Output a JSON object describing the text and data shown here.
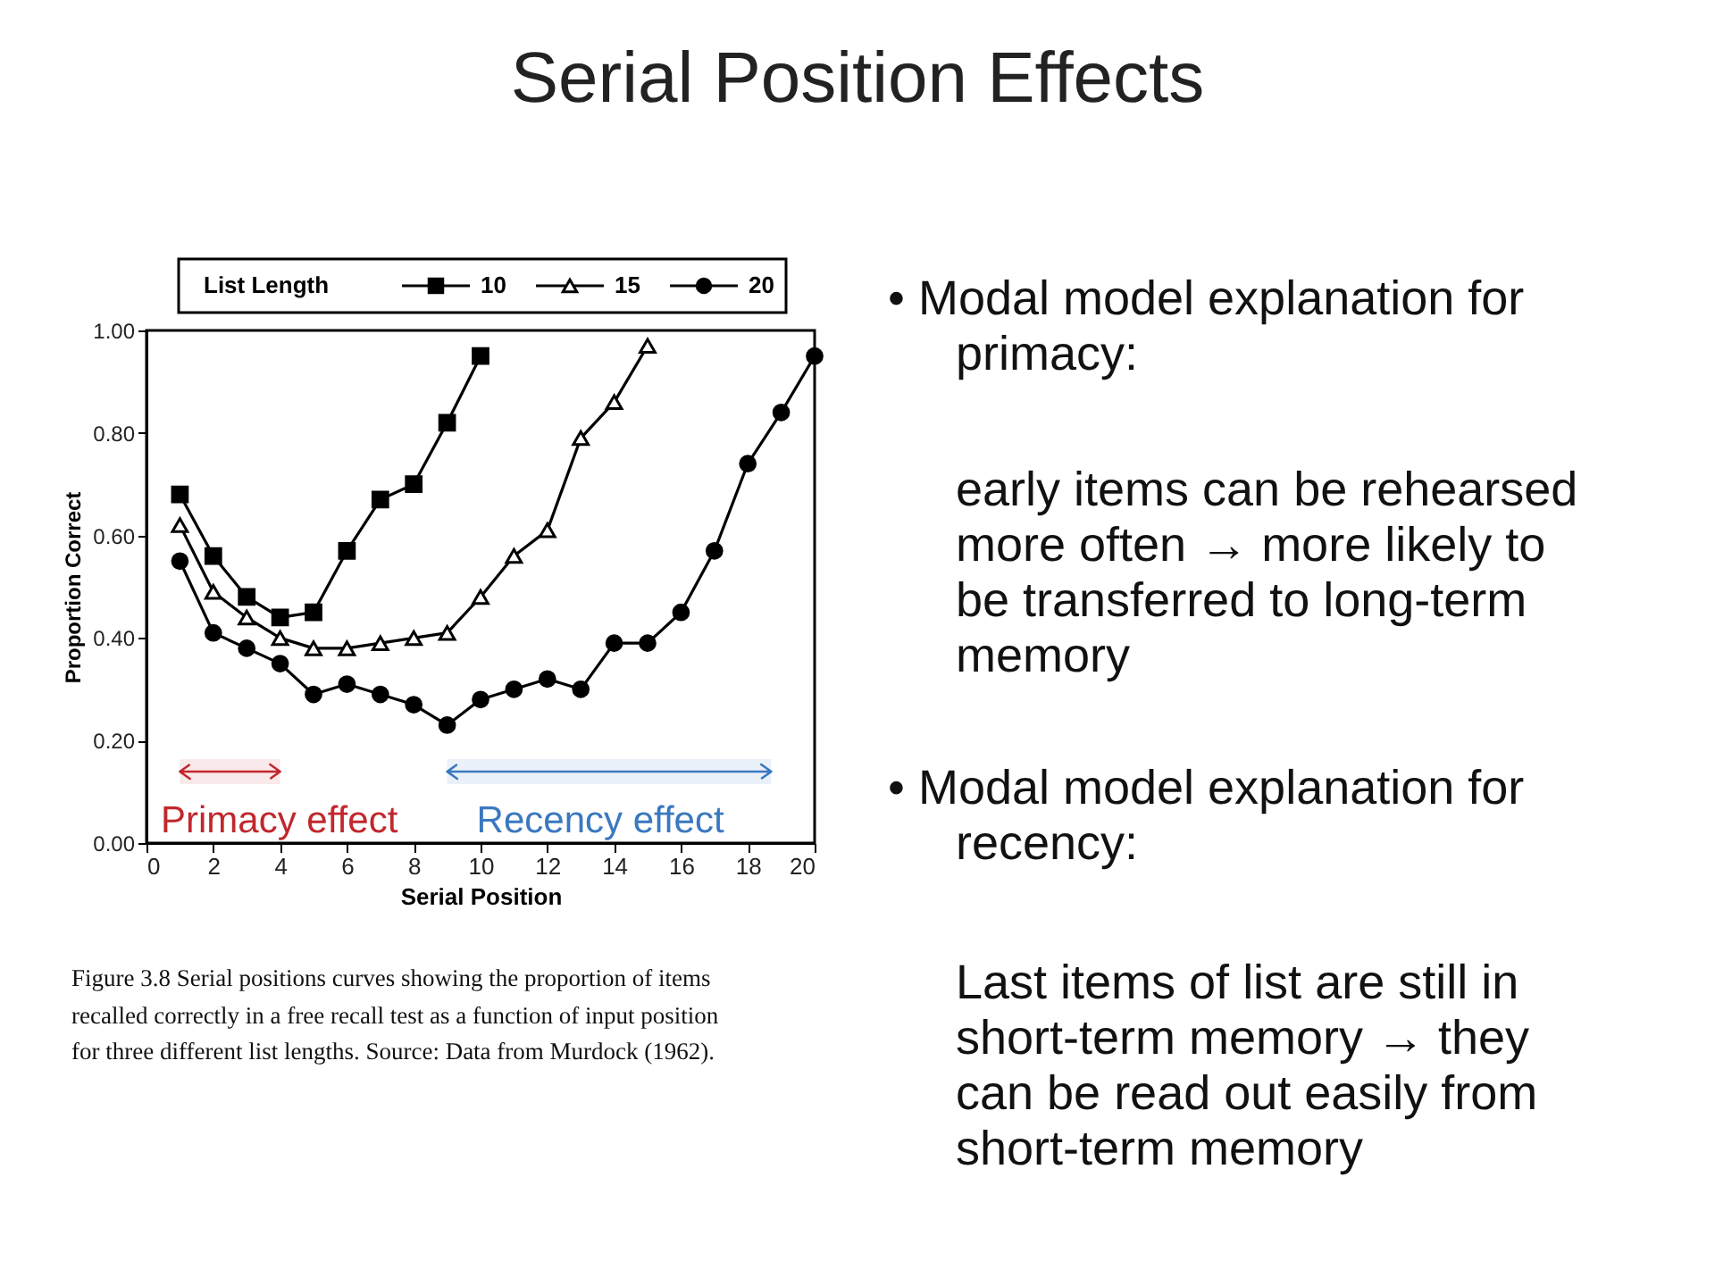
{
  "chart_data": {
    "type": "line",
    "title": "Serial Position Effects",
    "xlabel": "Serial Position",
    "ylabel": "Proportion Correct",
    "legend_title": "List Length",
    "legend": "top",
    "grid": false,
    "x": [
      1,
      2,
      3,
      4,
      5,
      6,
      7,
      8,
      9,
      10,
      11,
      12,
      13,
      14,
      15,
      16,
      17,
      18,
      19,
      20
    ],
    "xlim": [
      0,
      20
    ],
    "xticks": [
      0,
      2,
      4,
      6,
      8,
      10,
      12,
      14,
      16,
      18,
      20
    ],
    "ylim": [
      0,
      1
    ],
    "yticks": [
      {
        "value": 0,
        "label": "0.00"
      },
      {
        "value": 0.2,
        "label": "0.20"
      },
      {
        "value": 0.4,
        "label": "0.40"
      },
      {
        "value": 0.6,
        "label": "0.60"
      },
      {
        "value": 0.8,
        "label": "0.80"
      },
      {
        "value": 1,
        "label": "1.00"
      }
    ],
    "series": [
      {
        "name": "10",
        "color": "#000000",
        "marker": "square",
        "values": [
          0.68,
          0.56,
          0.48,
          0.44,
          0.45,
          0.57,
          0.67,
          0.7,
          0.82,
          0.95,
          null,
          null,
          null,
          null,
          null,
          null,
          null,
          null,
          null,
          null
        ]
      },
      {
        "name": "15",
        "color": "#000000",
        "marker": "triangle",
        "values": [
          0.62,
          0.49,
          0.44,
          0.4,
          0.38,
          0.38,
          0.39,
          0.4,
          0.41,
          0.48,
          0.56,
          0.61,
          0.79,
          0.86,
          0.97,
          null,
          null,
          null,
          null,
          null
        ]
      },
      {
        "name": "20",
        "color": "#000000",
        "marker": "circle",
        "values": [
          0.55,
          0.41,
          0.38,
          0.35,
          0.29,
          0.31,
          0.29,
          0.27,
          0.23,
          0.28,
          0.3,
          0.32,
          0.3,
          0.39,
          0.39,
          0.45,
          0.57,
          0.74,
          0.84,
          0.95
        ]
      }
    ],
    "bands": [
      {
        "axis": "x",
        "from": 1,
        "to": 4,
        "label": "Primacy effect",
        "color": "#c0282d"
      },
      {
        "axis": "x",
        "from": 9,
        "to": 18.7,
        "label": "Recency effect",
        "color": "#3a78c0"
      }
    ],
    "annotations": [
      "Figure 3.8   Serial positions curves showing the proportion of items",
      "recalled correctly in a free recall test as a function of input position",
      "for three different list lengths.   Source: Data from Murdock (1962).",
      "•  Modal model explanation for",
      "primacy:",
      "early items can be rehearsed",
      "more often → more likely to",
      "be transferred to long-term",
      "memory",
      "•  Modal model explanation for",
      "recency:",
      "Last items of list are still in",
      "short-term memory → they",
      "can be read out easily from",
      "short-term memory"
    ]
  }
}
